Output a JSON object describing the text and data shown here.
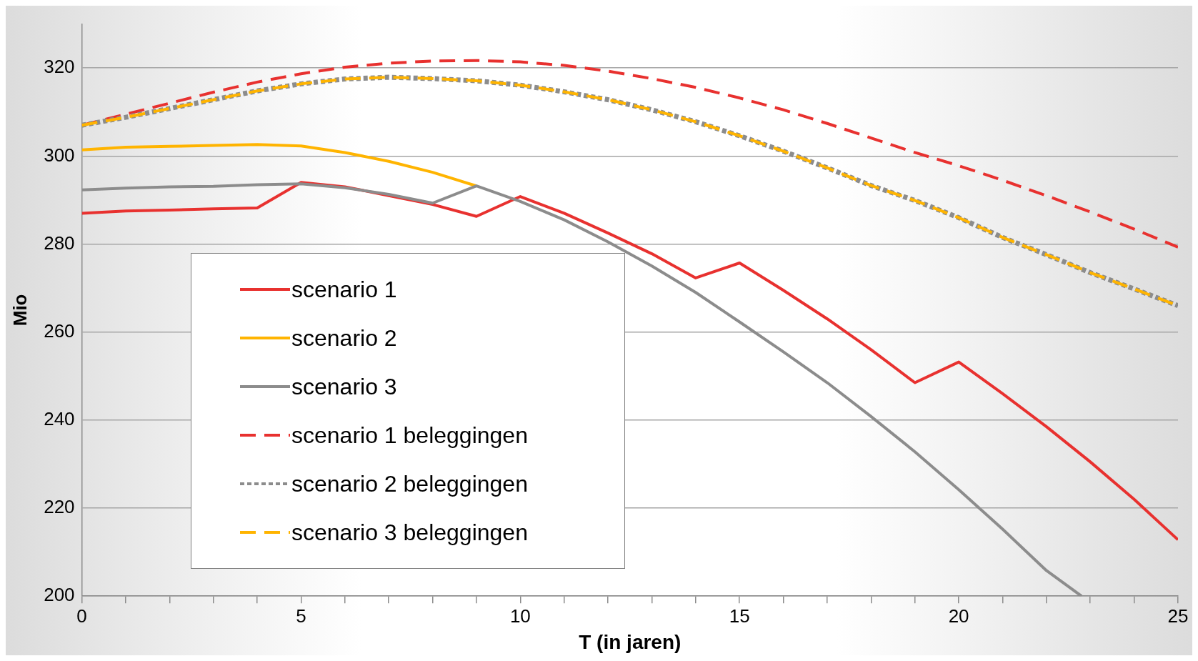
{
  "chart_data": {
    "type": "line",
    "xlabel": "T (in jaren)",
    "ylabel": "Mio",
    "x": [
      0,
      1,
      2,
      3,
      4,
      5,
      6,
      7,
      8,
      9,
      10,
      11,
      12,
      13,
      14,
      15,
      16,
      17,
      18,
      19,
      20,
      21,
      22,
      23,
      24,
      25
    ],
    "xlim": [
      0,
      25
    ],
    "xticks": [
      0,
      {
        "value": 1,
        "label": null
      },
      {
        "value": 2,
        "label": null
      },
      {
        "value": 3,
        "label": null
      },
      {
        "value": 4,
        "label": null
      },
      5,
      {
        "value": 6,
        "label": null
      },
      {
        "value": 7,
        "label": null
      },
      {
        "value": 8,
        "label": null
      },
      {
        "value": 9,
        "label": null
      },
      10,
      {
        "value": 11,
        "label": null
      },
      {
        "value": 12,
        "label": null
      },
      {
        "value": 13,
        "label": null
      },
      {
        "value": 14,
        "label": null
      },
      15,
      {
        "value": 16,
        "label": null
      },
      {
        "value": 17,
        "label": null
      },
      {
        "value": 18,
        "label": null
      },
      {
        "value": 19,
        "label": null
      },
      20,
      {
        "value": 21,
        "label": null
      },
      {
        "value": 22,
        "label": null
      },
      {
        "value": 23,
        "label": null
      },
      {
        "value": 24,
        "label": null
      },
      25
    ],
    "ylim": [
      200,
      330
    ],
    "yticks": [
      200,
      220,
      240,
      260,
      280,
      300,
      320
    ],
    "grid": "y",
    "legend": "left",
    "marker": "none",
    "series": [
      {
        "name": "scenario 1",
        "color": "#e8312f",
        "line_style": "solid",
        "values": [
          287,
          287.5,
          287.7,
          288,
          288.2,
          294,
          293,
          291,
          289,
          286.3,
          290.8,
          287,
          282.5,
          277.8,
          272.3,
          275.7,
          269.5,
          263,
          256,
          248.5,
          253.2,
          246,
          238.5,
          230.5,
          222,
          212.8
        ]
      },
      {
        "name": "scenario 2",
        "color": "#ffb400",
        "line_style": "solid",
        "values": [
          301.4,
          302,
          302.2,
          302.4,
          302.6,
          302.3,
          300.8,
          298.8,
          296.3,
          293.2,
          null,
          null,
          null,
          null,
          null,
          null,
          null,
          null,
          null,
          null,
          null,
          null,
          null,
          null,
          null,
          null
        ]
      },
      {
        "name": "scenario 3",
        "color": "#8c8c8c",
        "line_style": "solid",
        "x": [
          0,
          1,
          2,
          3,
          4,
          5,
          6,
          7,
          8,
          9,
          10,
          11,
          12,
          13,
          14,
          15,
          16,
          17,
          18,
          19,
          20,
          21,
          22,
          22.8
        ],
        "values": [
          292.3,
          292.7,
          293,
          293.1,
          293.5,
          293.7,
          292.8,
          291.3,
          289.3,
          293.2,
          289.7,
          285.5,
          280.5,
          275,
          269,
          262.3,
          255.5,
          248.5,
          240.8,
          232.8,
          224.2,
          215.2,
          205.8,
          200
        ]
      },
      {
        "name": "scenario 1 beleggingen",
        "color": "#e8312f",
        "line_style": "dashed",
        "values": [
          307,
          309.5,
          312,
          314.5,
          316.8,
          318.7,
          320.2,
          321.1,
          321.6,
          321.7,
          321.4,
          320.6,
          319.3,
          317.6,
          315.6,
          313.2,
          310.5,
          307.4,
          304.1,
          300.8,
          297.8,
          294.5,
          291,
          287.3,
          283.4,
          279.3
        ]
      },
      {
        "name": "scenario 2 beleggingen",
        "color": "#8c8c8c",
        "line_style": "dotted",
        "values": [
          307,
          308.8,
          310.8,
          312.8,
          314.8,
          316.4,
          317.5,
          317.9,
          317.6,
          317.1,
          316.1,
          314.6,
          312.8,
          310.5,
          307.8,
          304.6,
          301.1,
          297.3,
          293.3,
          289.9,
          286,
          281.5,
          277.6,
          273.5,
          269.8,
          266
        ]
      },
      {
        "name": "scenario 3 beleggingen",
        "color": "#ffb400",
        "line_style": "dashed",
        "values": [
          307,
          308.8,
          310.8,
          312.8,
          314.8,
          316.4,
          317.5,
          317.9,
          317.6,
          317.1,
          316.1,
          314.6,
          312.8,
          310.5,
          307.8,
          304.6,
          301.1,
          297.3,
          293.3,
          289.9,
          286,
          281.5,
          277.6,
          273.5,
          269.8,
          266
        ]
      }
    ]
  }
}
